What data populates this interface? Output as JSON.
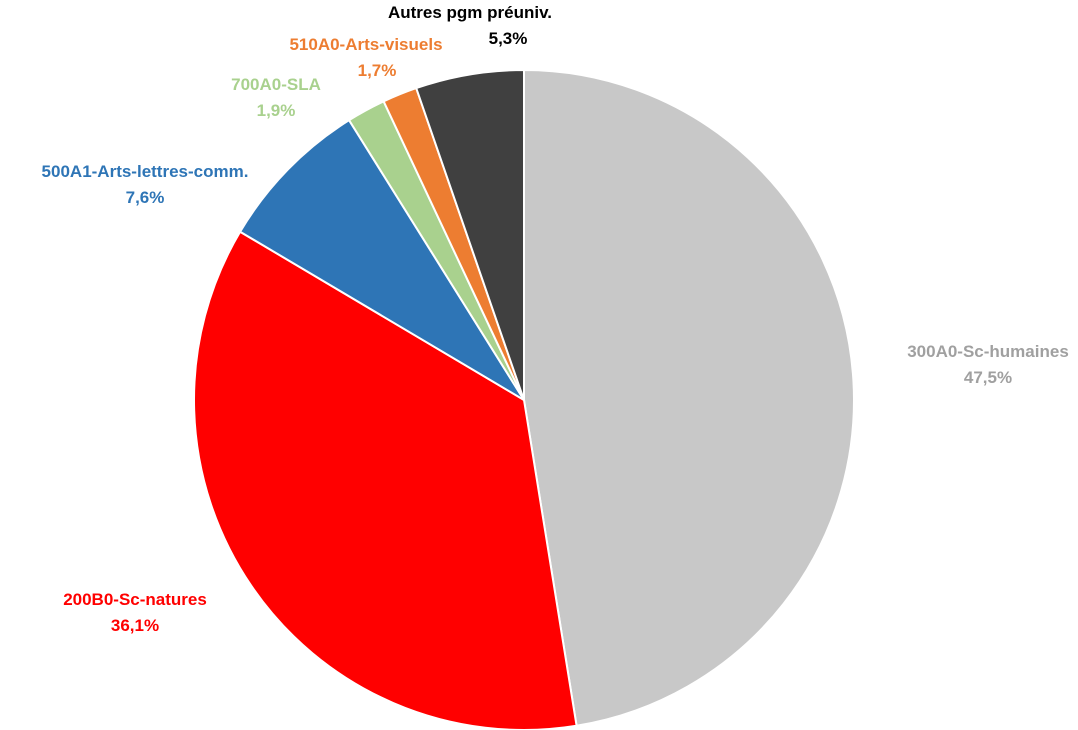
{
  "chart_data": {
    "type": "pie",
    "start_angle_deg": 0,
    "direction": "clockwise",
    "slices": [
      {
        "label": "300A0-Sc-humaines",
        "value": 47.5,
        "value_label": "47,5%",
        "color": "#C8C8C8",
        "label_color": "#A0A0A0"
      },
      {
        "label": "200B0-Sc-natures",
        "value": 36.1,
        "value_label": "36,1%",
        "color": "#FF0000",
        "label_color": "#FF0000"
      },
      {
        "label": "500A1-Arts-lettres-comm.",
        "value": 7.6,
        "value_label": "7,6%",
        "color": "#2E75B6",
        "label_color": "#2E75B6"
      },
      {
        "label": "700A0-SLA",
        "value": 1.9,
        "value_label": "1,9%",
        "color": "#A9D18E",
        "label_color": "#A9D18E"
      },
      {
        "label": "510A0-Arts-visuels",
        "value": 1.7,
        "value_label": "1,7%",
        "color": "#ED7D31",
        "label_color": "#ED7D31"
      },
      {
        "label": "Autres pgm préuniv.",
        "value": 5.3,
        "value_label": "5,3%",
        "color": "#404040",
        "label_color": "#000000"
      }
    ]
  }
}
